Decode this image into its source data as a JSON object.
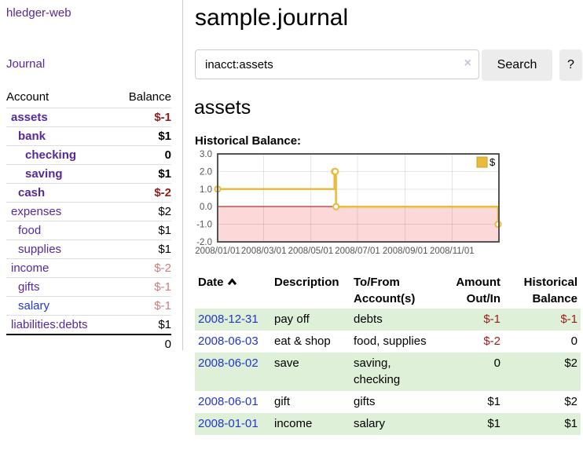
{
  "colors": {
    "link_purple": "#55289b",
    "link_blue": "#2236cc",
    "negative_strong": "#8f1d1d",
    "negative_table": "#9e1b1b",
    "negative_soft": "#c87e7e",
    "row_green": "#dff0d8",
    "button_bg": "#ececec",
    "chart_line": "#e8bb3c",
    "chart_marker_fill": "#ffffff",
    "chart_negative_zone": "#fcd8d8",
    "chart_zero_line": "#a00000",
    "chart_border": "#545454",
    "chart_grid": "#e0e0e0",
    "chart_tick_text": "#545454"
  },
  "sidebar": {
    "app_title": "hledger-web",
    "journal_label": "Journal",
    "accounts": {
      "header_account": "Account",
      "header_balance": "Balance",
      "rows": [
        {
          "name": "assets",
          "balance": "$-1",
          "level": 1,
          "bold": true,
          "link_color": "purple",
          "balance_color": "neg-strong"
        },
        {
          "name": "bank",
          "balance": "$1",
          "level": 2,
          "bold": true,
          "link_color": "purple",
          "balance_color": "black"
        },
        {
          "name": "checking",
          "balance": "0",
          "level": 3,
          "bold": true,
          "link_color": "purple",
          "balance_color": "black"
        },
        {
          "name": "saving",
          "balance": "$1",
          "level": 3,
          "bold": true,
          "link_color": "purple",
          "balance_color": "black"
        },
        {
          "name": "cash",
          "balance": "$-2",
          "level": 2,
          "bold": true,
          "link_color": "purple",
          "balance_color": "neg-strong"
        },
        {
          "name": "expenses",
          "balance": "$2",
          "level": 1,
          "bold": false,
          "link_color": "purple",
          "balance_color": "black"
        },
        {
          "name": "food",
          "balance": "$1",
          "level": 2,
          "bold": false,
          "link_color": "purple",
          "balance_color": "black"
        },
        {
          "name": "supplies",
          "balance": "$1",
          "level": 2,
          "bold": false,
          "link_color": "purple",
          "balance_color": "black"
        },
        {
          "name": "income",
          "balance": "$-2",
          "level": 1,
          "bold": false,
          "link_color": "purple",
          "balance_color": "neg-soft"
        },
        {
          "name": "gifts",
          "balance": "$-1",
          "level": 2,
          "bold": false,
          "link_color": "purple",
          "balance_color": "neg-soft"
        },
        {
          "name": "salary",
          "balance": "$-1",
          "level": 2,
          "bold": false,
          "link_color": "blue",
          "balance_color": "neg-soft"
        },
        {
          "name": "liabilities:debts",
          "balance": "$1",
          "level": 1,
          "bold": false,
          "link_color": "purple",
          "balance_color": "black"
        }
      ],
      "total": "0"
    }
  },
  "main": {
    "title": "sample.journal",
    "search": {
      "query": "inacct:assets",
      "clear_icon": "×",
      "button_label": "Search",
      "help_label": "?"
    },
    "account_heading": "assets",
    "chart_title": "Historical Balance:"
  },
  "chart_data": {
    "type": "line",
    "style": "steps",
    "title": "Historical Balance:",
    "legend_position": "top-right",
    "grid": true,
    "ylim": [
      -2,
      3
    ],
    "xlim": [
      "2008-01-01",
      "2009-01-01"
    ],
    "y_ticks": [
      {
        "v": 3,
        "label": "3.0"
      },
      {
        "v": 2,
        "label": "2.0"
      },
      {
        "v": 1,
        "label": "1.0"
      },
      {
        "v": 0,
        "label": "0.0"
      },
      {
        "v": -1,
        "label": "-1.0"
      },
      {
        "v": -2,
        "label": "-2.0"
      }
    ],
    "x_ticks": [
      {
        "date": "2008-01-01",
        "label": "2008/01/01"
      },
      {
        "date": "2008-03-01",
        "label": "2008/03/01"
      },
      {
        "date": "2008-05-01",
        "label": "2008/05/01"
      },
      {
        "date": "2008-07-01",
        "label": "2008/07/01"
      },
      {
        "date": "2008-09-01",
        "label": "2008/09/01"
      },
      {
        "date": "2008-11-01",
        "label": "2008/11/01"
      }
    ],
    "negative_zone": true,
    "series": [
      {
        "name": "$",
        "points": [
          {
            "date": "2008-01-01",
            "value": 1
          },
          {
            "date": "2008-06-01",
            "value": 2
          },
          {
            "date": "2008-06-02",
            "value": 2
          },
          {
            "date": "2008-06-03",
            "value": 0
          },
          {
            "date": "2008-12-31",
            "value": -1
          }
        ]
      }
    ]
  },
  "transactions": {
    "headers": [
      {
        "lines": [
          "Date"
        ],
        "align": "left",
        "sort": "asc"
      },
      {
        "lines": [
          "Description"
        ],
        "align": "left"
      },
      {
        "lines": [
          "To/From",
          "Account(s)"
        ],
        "align": "left"
      },
      {
        "lines": [
          "Amount",
          "Out/In"
        ],
        "align": "right"
      },
      {
        "lines": [
          "Historical",
          "Balance"
        ],
        "align": "right"
      }
    ],
    "rows": [
      {
        "date": "2008-12-31",
        "description": "pay off",
        "accounts": "debts",
        "amount": "$-1",
        "amount_negative": true,
        "balance": "$-1",
        "balance_negative": true
      },
      {
        "date": "2008-06-03",
        "description": "eat & shop",
        "accounts": "food, supplies",
        "amount": "$-2",
        "amount_negative": true,
        "balance": "0",
        "balance_negative": false
      },
      {
        "date": "2008-06-02",
        "description": "save",
        "accounts": "saving, checking",
        "amount": "0",
        "amount_negative": false,
        "balance": "$2",
        "balance_negative": false
      },
      {
        "date": "2008-06-01",
        "description": "gift",
        "accounts": "gifts",
        "amount": "$1",
        "amount_negative": false,
        "balance": "$2",
        "balance_negative": false
      },
      {
        "date": "2008-01-01",
        "description": "income",
        "accounts": "salary",
        "amount": "$1",
        "amount_negative": false,
        "balance": "$1",
        "balance_negative": false
      }
    ]
  }
}
